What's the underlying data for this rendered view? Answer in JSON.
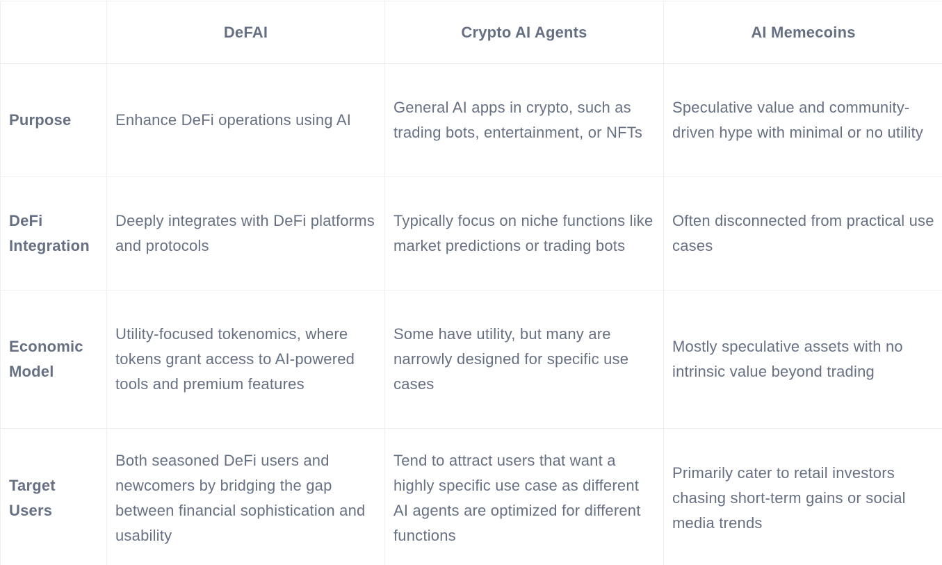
{
  "table": {
    "headers": [
      "",
      "DeFAI",
      "Crypto AI Agents",
      "AI Memecoins"
    ],
    "rows": [
      {
        "label": "Purpose",
        "cells": [
          "Enhance DeFi operations using AI",
          "General AI apps in crypto, such as trading bots, entertainment, or NFTs",
          "Speculative value and community-driven hype with minimal or no utility"
        ]
      },
      {
        "label": "DeFi Integration",
        "cells": [
          "Deeply integrates with DeFi platforms and protocols",
          "Typically focus on niche functions like market predictions or trading bots",
          "Often disconnected from practical use cases"
        ]
      },
      {
        "label": "Economic Model",
        "cells": [
          "Utility-focused tokenomics, where tokens grant access to AI-powered tools and premium features",
          "Some have utility, but many are narrowly designed for specific use cases",
          "Mostly speculative assets with no intrinsic value beyond trading"
        ]
      },
      {
        "label": "Target Users",
        "cells": [
          "Both seasoned DeFi users and newcomers by bridging the gap between financial sophistication and usability",
          "Tend to attract users that want a highly specific use case as different AI agents are optimized for different functions",
          "Primarily cater to retail investors chasing short-term gains or social media trends"
        ]
      }
    ]
  }
}
